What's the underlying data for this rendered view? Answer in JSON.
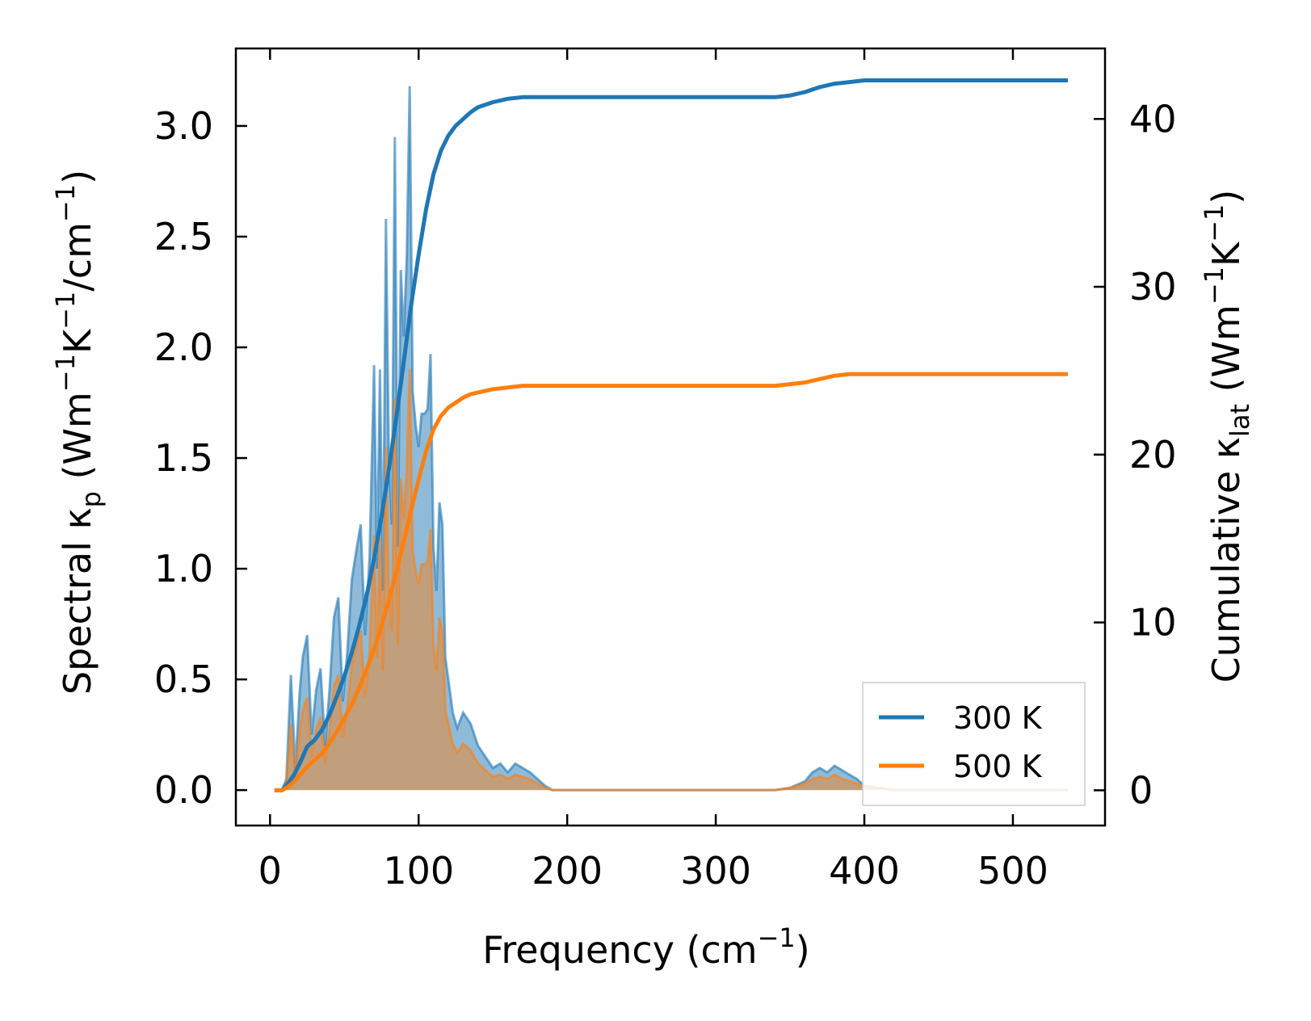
{
  "chart_data": {
    "type": "line",
    "xlabel": {
      "main": "Frequency (cm",
      "sup": "−1",
      "end": ")"
    },
    "ylabel_left": {
      "main": "Spectral κ",
      "sub": "p",
      "mid": " (Wm",
      "sup1": "−1",
      "k": "K",
      "sup2": "−1",
      "slash": "/cm",
      "sup3": "−1",
      "end": ")"
    },
    "ylabel_right": {
      "main": "Cumulative κ",
      "sub": "lat",
      "mid": " (Wm",
      "sup1": "−1",
      "k": "K",
      "sup2": "−1",
      "end": ")"
    },
    "xlim": [
      -23,
      562
    ],
    "ylim_left": [
      -0.16,
      3.35
    ],
    "ylim_right": [
      -2.1,
      44.2
    ],
    "x_ticks": [
      0,
      100,
      200,
      300,
      400,
      500
    ],
    "x_tick_labels": [
      "0",
      "100",
      "200",
      "300",
      "400",
      "500"
    ],
    "y_left_ticks": [
      0.0,
      0.5,
      1.0,
      1.5,
      2.0,
      2.5,
      3.0
    ],
    "y_left_tick_labels": [
      "0.0",
      "0.5",
      "1.0",
      "1.5",
      "2.0",
      "2.5",
      "3.0"
    ],
    "y_right_ticks": [
      0,
      10,
      20,
      30,
      40
    ],
    "y_right_tick_labels": [
      "0",
      "10",
      "20",
      "30",
      "40"
    ],
    "legend_position": "lower-right",
    "colors": {
      "s300": "#1f77b4",
      "s500": "#ff7f0e",
      "fill300": "#1f77b4",
      "fill500": "#ff7f0e"
    },
    "series": [
      {
        "name": "300 K",
        "axis": "right",
        "x": [
          3,
          8,
          12,
          16,
          20,
          25,
          30,
          35,
          40,
          45,
          50,
          55,
          60,
          65,
          70,
          75,
          80,
          85,
          90,
          95,
          100,
          105,
          110,
          115,
          120,
          125,
          130,
          135,
          140,
          150,
          160,
          170,
          180,
          190,
          200,
          250,
          300,
          340,
          350,
          360,
          370,
          380,
          390,
          400,
          420,
          450,
          500,
          537
        ],
        "values": [
          0,
          0,
          0.4,
          0.9,
          1.6,
          2.6,
          3.0,
          3.6,
          4.5,
          5.6,
          6.8,
          8.2,
          9.8,
          11.6,
          13.8,
          16.3,
          19.1,
          22.2,
          25.5,
          28.9,
          31.9,
          34.6,
          36.7,
          38.1,
          39.0,
          39.6,
          40.0,
          40.4,
          40.7,
          41.0,
          41.2,
          41.3,
          41.3,
          41.3,
          41.3,
          41.3,
          41.3,
          41.3,
          41.4,
          41.6,
          41.9,
          42.1,
          42.2,
          42.3,
          42.3,
          42.3,
          42.3,
          42.3
        ]
      },
      {
        "name": "500 K",
        "axis": "right",
        "x": [
          3,
          8,
          12,
          16,
          20,
          25,
          30,
          35,
          40,
          45,
          50,
          55,
          60,
          65,
          70,
          75,
          80,
          85,
          90,
          95,
          100,
          105,
          110,
          115,
          120,
          125,
          130,
          135,
          140,
          150,
          160,
          170,
          180,
          190,
          200,
          250,
          300,
          340,
          350,
          360,
          370,
          380,
          390,
          400,
          420,
          450,
          500,
          537
        ],
        "values": [
          0,
          0,
          0.2,
          0.5,
          0.9,
          1.4,
          1.8,
          2.2,
          2.8,
          3.5,
          4.3,
          5.1,
          6.1,
          7.2,
          8.4,
          9.8,
          11.3,
          13.0,
          14.8,
          16.7,
          18.5,
          20.2,
          21.5,
          22.3,
          22.8,
          23.1,
          23.4,
          23.6,
          23.7,
          23.9,
          24.0,
          24.1,
          24.1,
          24.1,
          24.1,
          24.1,
          24.1,
          24.1,
          24.2,
          24.3,
          24.5,
          24.7,
          24.8,
          24.8,
          24.8,
          24.8,
          24.8,
          24.8
        ]
      }
    ],
    "spectral_series": [
      {
        "temperature": "300 K",
        "axis": "left",
        "x": [
          3,
          8,
          11,
          14,
          17,
          20,
          22,
          25,
          28,
          31,
          34,
          37,
          40,
          43,
          46,
          49,
          52,
          55,
          58,
          61,
          64,
          67,
          70,
          72,
          74,
          76,
          78,
          80,
          82,
          84,
          86,
          88,
          90,
          92,
          94,
          96,
          98,
          100,
          102,
          104,
          106,
          108,
          110,
          112,
          114,
          116,
          118,
          120,
          123,
          126,
          130,
          135,
          140,
          145,
          150,
          155,
          160,
          165,
          170,
          175,
          180,
          185,
          190,
          200,
          250,
          300,
          340,
          350,
          360,
          365,
          370,
          375,
          380,
          385,
          390,
          395,
          400,
          410,
          420,
          450,
          500,
          537
        ],
        "values": [
          0,
          0,
          0.05,
          0.52,
          0.1,
          0.45,
          0.6,
          0.7,
          0.25,
          0.45,
          0.55,
          0.2,
          0.45,
          0.78,
          0.87,
          0.4,
          0.62,
          0.95,
          1.08,
          1.2,
          0.7,
          1.05,
          1.92,
          1.0,
          1.9,
          0.9,
          2.58,
          1.5,
          1.2,
          2.95,
          1.1,
          2.35,
          2.05,
          2.4,
          3.18,
          1.8,
          1.65,
          1.55,
          1.7,
          1.7,
          1.72,
          1.97,
          1.1,
          0.9,
          1.3,
          1.2,
          0.6,
          0.5,
          0.35,
          0.28,
          0.35,
          0.3,
          0.2,
          0.15,
          0.1,
          0.12,
          0.08,
          0.12,
          0.1,
          0.08,
          0.05,
          0.02,
          0,
          0,
          0,
          0,
          0,
          0.01,
          0.04,
          0.08,
          0.1,
          0.08,
          0.11,
          0.09,
          0.07,
          0.05,
          0.02,
          0.01,
          0,
          0,
          0,
          0
        ]
      },
      {
        "temperature": "500 K",
        "axis": "left",
        "x": [
          3,
          8,
          11,
          14,
          17,
          20,
          22,
          25,
          28,
          31,
          34,
          37,
          40,
          43,
          46,
          49,
          52,
          55,
          58,
          61,
          64,
          67,
          70,
          72,
          74,
          76,
          78,
          80,
          82,
          84,
          86,
          88,
          90,
          92,
          94,
          96,
          98,
          100,
          102,
          104,
          106,
          108,
          110,
          112,
          114,
          116,
          118,
          120,
          123,
          126,
          130,
          135,
          140,
          145,
          150,
          155,
          160,
          165,
          170,
          175,
          180,
          185,
          190,
          200,
          250,
          300,
          340,
          350,
          360,
          365,
          370,
          375,
          380,
          385,
          390,
          395,
          400,
          410,
          420,
          450,
          500,
          537
        ],
        "values": [
          0,
          0,
          0.03,
          0.3,
          0.06,
          0.27,
          0.36,
          0.42,
          0.15,
          0.27,
          0.33,
          0.12,
          0.27,
          0.47,
          0.52,
          0.24,
          0.37,
          0.57,
          0.65,
          0.72,
          0.42,
          0.63,
          1.15,
          0.6,
          1.14,
          0.54,
          1.55,
          0.9,
          0.72,
          1.77,
          0.66,
          1.41,
          1.23,
          1.44,
          1.9,
          1.08,
          0.99,
          0.93,
          1.02,
          1.02,
          1.03,
          1.18,
          0.66,
          0.54,
          0.78,
          0.72,
          0.36,
          0.3,
          0.21,
          0.17,
          0.21,
          0.18,
          0.12,
          0.09,
          0.06,
          0.07,
          0.05,
          0.07,
          0.06,
          0.05,
          0.03,
          0.01,
          0,
          0,
          0,
          0,
          0,
          0.01,
          0.03,
          0.05,
          0.06,
          0.05,
          0.07,
          0.05,
          0.04,
          0.03,
          0.01,
          0.01,
          0,
          0,
          0,
          0
        ]
      }
    ]
  }
}
